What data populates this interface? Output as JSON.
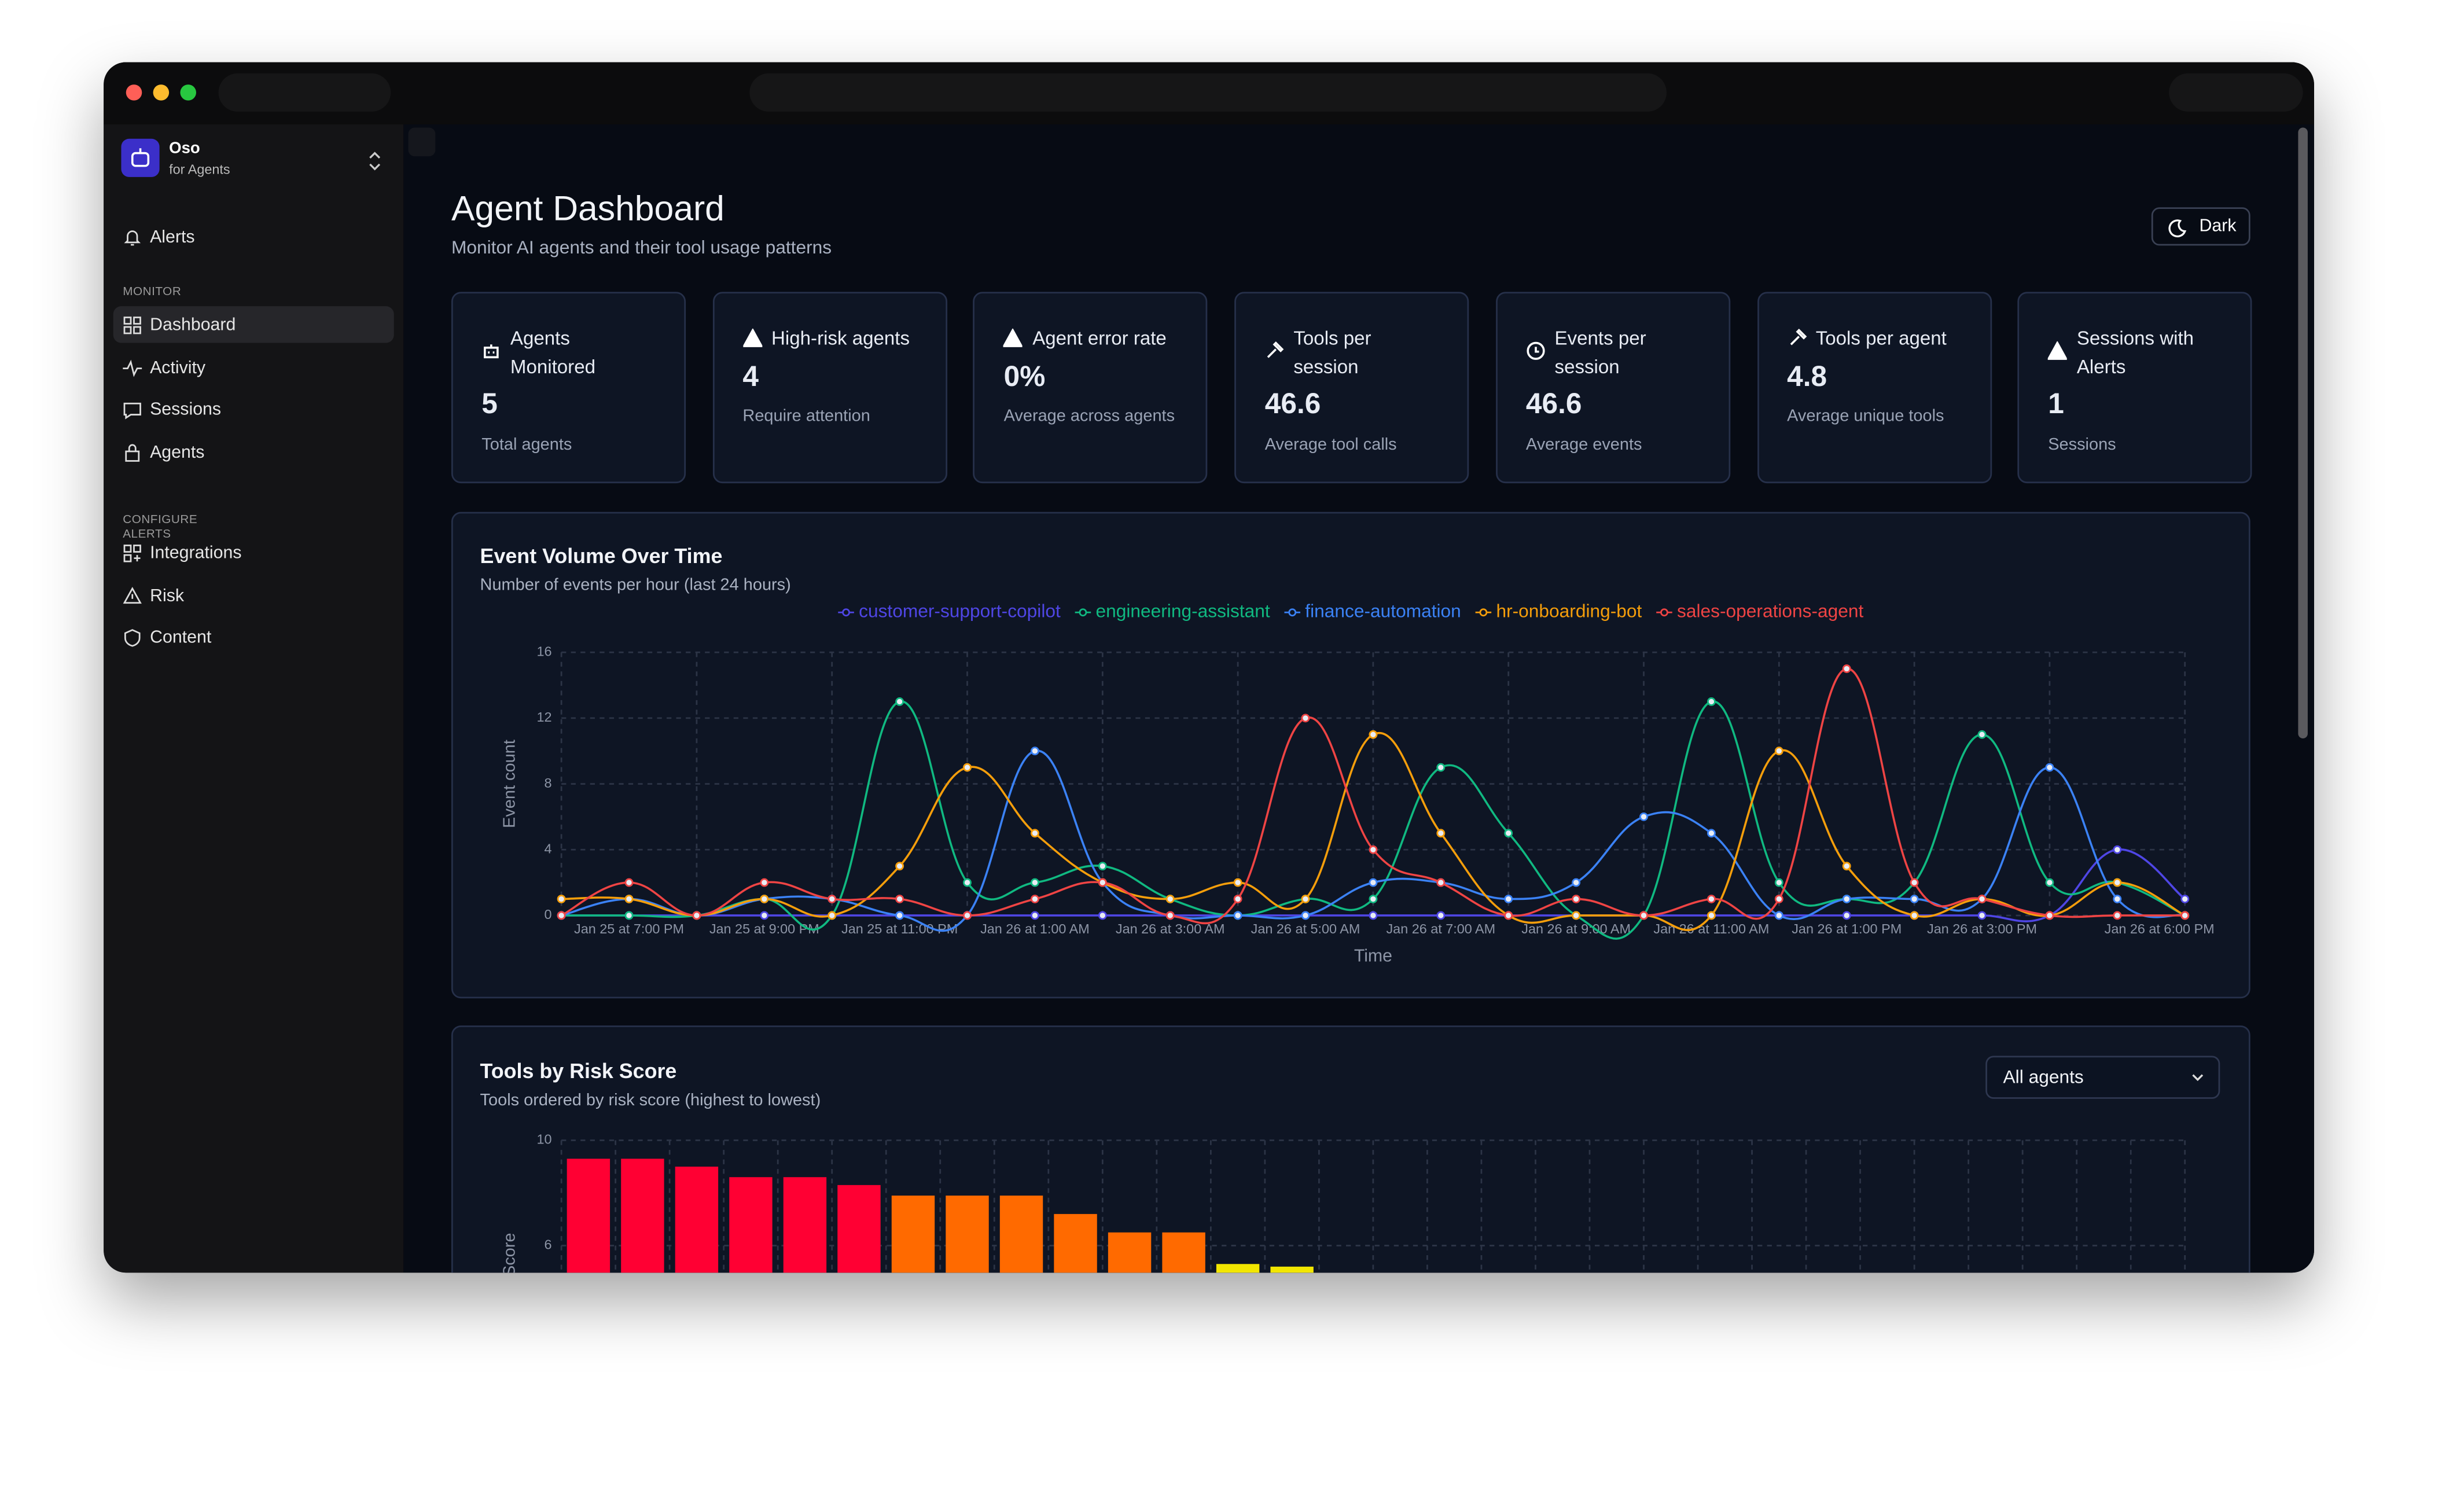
{
  "app": {
    "name": "Oso",
    "subtitle": "for Agents"
  },
  "nav": {
    "alerts": "Alerts",
    "sections": [
      {
        "heading": "MONITOR",
        "items": [
          "Dashboard",
          "Activity",
          "Sessions",
          "Agents"
        ]
      },
      {
        "heading": "CONFIGURE ALERTS",
        "items": [
          "Integrations",
          "Risk",
          "Content"
        ]
      }
    ]
  },
  "header": {
    "title": "Agent Dashboard",
    "subtitle": "Monitor AI agents and their tool usage patterns",
    "theme_button": "Dark"
  },
  "stats": [
    {
      "label": "Agents Monitored",
      "value": 5,
      "note": "Total agents"
    },
    {
      "label": "High-risk agents",
      "value": 4,
      "note": "Require attention"
    },
    {
      "label": "Agent error rate",
      "value": "0%",
      "note": "Average across agents"
    },
    {
      "label": "Tools per session",
      "value": 46.6,
      "note": "Average tool calls"
    },
    {
      "label": "Events per session",
      "value": 46.6,
      "note": "Average events"
    },
    {
      "label": "Tools per agent",
      "value": 4.8,
      "note": "Average unique tools"
    },
    {
      "label": "Sessions with Alerts",
      "value": 1,
      "note": "Sessions"
    }
  ],
  "risk_filter": "All agents",
  "chart_data": [
    {
      "type": "line",
      "title": "Event Volume Over Time",
      "subtitle": "Number of events per hour (last 24 hours)",
      "x_label": "Time",
      "y_label": "Event count",
      "categories": [
        null,
        "Jan 25 at 7:00 PM",
        null,
        "Jan 25 at 9:00 PM",
        null,
        "Jan 25 at 11:00 PM",
        null,
        "Jan 26 at 1:00 AM",
        null,
        "Jan 26 at 3:00 AM",
        null,
        "Jan 26 at 5:00 AM",
        null,
        "Jan 26 at 7:00 AM",
        null,
        "Jan 26 at 9:00 AM",
        null,
        "Jan 26 at 11:00 AM",
        null,
        "Jan 26 at 1:00 PM",
        null,
        "Jan 26 at 3:00 PM",
        null,
        null,
        "Jan 26 at 6:00 PM"
      ],
      "series": [
        {
          "name": "customer-support-copilot",
          "color": "#4f46e5",
          "values": [
            0,
            0,
            0,
            0,
            0,
            0,
            0,
            0,
            0,
            0,
            0,
            0,
            0,
            0,
            0,
            0,
            0,
            0,
            0,
            0,
            0,
            0,
            0,
            4,
            1
          ]
        },
        {
          "name": "engineering-assistant",
          "color": "#10b981",
          "values": [
            0,
            0,
            0,
            1,
            0,
            13,
            2,
            2,
            3,
            1,
            0,
            1,
            1,
            9,
            5,
            0,
            0,
            13,
            2,
            1,
            2,
            11,
            2,
            2,
            0
          ]
        },
        {
          "name": "finance-automation",
          "color": "#3b82f6",
          "values": [
            0,
            1,
            0,
            1,
            1,
            0,
            0,
            10,
            2,
            0,
            0,
            0,
            2,
            2,
            1,
            2,
            6,
            5,
            0,
            1,
            1,
            1,
            9,
            1,
            0
          ]
        },
        {
          "name": "hr-onboarding-bot",
          "color": "#f59e0b",
          "values": [
            1,
            1,
            0,
            1,
            0,
            3,
            9,
            5,
            2,
            1,
            2,
            1,
            11,
            5,
            0,
            0,
            0,
            0,
            10,
            3,
            0,
            1,
            0,
            2,
            0
          ]
        },
        {
          "name": "sales-operations-agent",
          "color": "#ef4444",
          "values": [
            0,
            2,
            0,
            2,
            1,
            1,
            0,
            1,
            2,
            0,
            1,
            12,
            4,
            2,
            0,
            1,
            0,
            1,
            1,
            15,
            2,
            1,
            0,
            0,
            0
          ]
        }
      ],
      "ylim": [
        0,
        16
      ],
      "yticks": [
        0,
        4,
        8,
        12,
        16
      ],
      "grid": true,
      "legend": "top"
    },
    {
      "type": "bar",
      "title": "Tools by Risk Score",
      "subtitle": "Tools ordered by risk score (highest to lowest)",
      "y_label": "Score",
      "categories": [
        null,
        null,
        null,
        null,
        null,
        null,
        null,
        null,
        null,
        null,
        null,
        null,
        null,
        null
      ],
      "values": [
        9.3,
        9.3,
        9.0,
        8.6,
        8.6,
        8.3,
        7.9,
        7.9,
        7.9,
        7.2,
        6.5,
        6.5,
        5.3,
        5.2
      ],
      "colors": [
        "#ff0033",
        "#ff0033",
        "#ff0033",
        "#ff0033",
        "#ff0033",
        "#ff0033",
        "#ff6a00",
        "#ff6a00",
        "#ff6a00",
        "#ff6a00",
        "#ff6a00",
        "#ff6a00",
        "#f2e600",
        "#f2e600"
      ],
      "ylim": [
        0,
        10
      ],
      "yticks": [
        6,
        10
      ],
      "grid": true
    }
  ]
}
